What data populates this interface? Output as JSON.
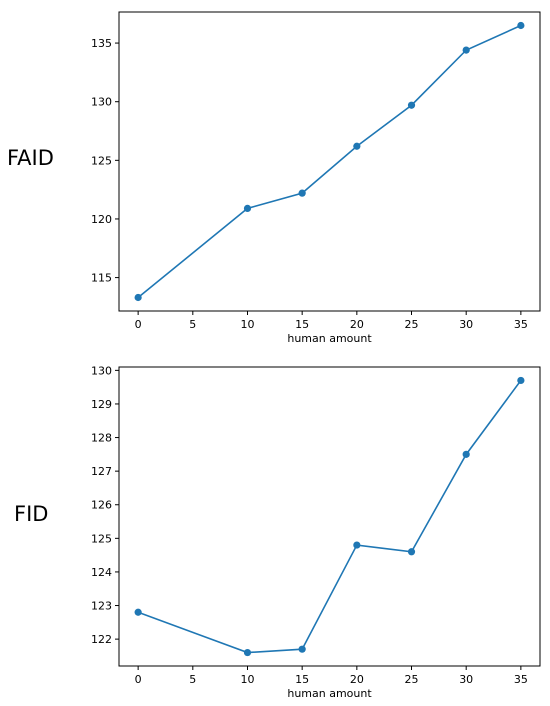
{
  "chart_data": [
    {
      "type": "line",
      "side_label": "FAID",
      "xlabel": "human amount",
      "ylabel": "",
      "x": [
        0,
        10,
        15,
        20,
        25,
        30,
        35
      ],
      "series": [
        {
          "values": [
            113.3,
            120.9,
            122.2,
            126.2,
            129.7,
            134.4,
            136.5
          ]
        }
      ],
      "xticks": [
        0,
        5,
        10,
        15,
        20,
        25,
        30,
        35
      ],
      "yticks": [
        115,
        120,
        125,
        130,
        135
      ],
      "xlim": [
        -1.75,
        36.75
      ],
      "ylim": [
        112.15,
        137.65
      ],
      "grid": false,
      "color": "#1f77b4"
    },
    {
      "type": "line",
      "side_label": "FID",
      "xlabel": "human amount",
      "ylabel": "",
      "x": [
        0,
        10,
        15,
        20,
        25,
        30,
        35
      ],
      "series": [
        {
          "values": [
            122.8,
            121.6,
            121.7,
            124.8,
            124.6,
            127.5,
            129.7
          ]
        }
      ],
      "xticks": [
        0,
        5,
        10,
        15,
        20,
        25,
        30,
        35
      ],
      "yticks": [
        122,
        123,
        124,
        125,
        126,
        127,
        128,
        129,
        130
      ],
      "xlim": [
        -1.75,
        36.75
      ],
      "ylim": [
        121.2,
        130.1
      ],
      "grid": false,
      "color": "#1f77b4"
    }
  ]
}
